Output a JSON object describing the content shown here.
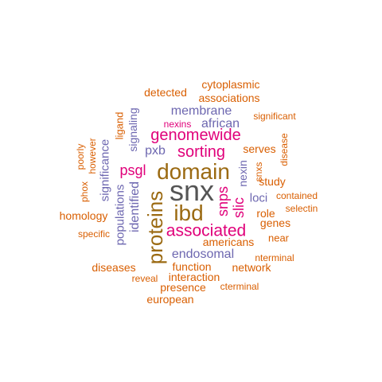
{
  "colors": {
    "gray": "#555555",
    "brown": "#9b6a12",
    "magenta": "#e0007a",
    "purple": "#6d67b0",
    "orange": "#d95f02"
  },
  "words": [
    {
      "text": "snx",
      "color": "gray"
    },
    {
      "text": "domain",
      "color": "brown"
    },
    {
      "text": "ibd",
      "color": "brown"
    },
    {
      "text": "proteins",
      "color": "brown"
    },
    {
      "text": "associated",
      "color": "magenta"
    },
    {
      "text": "genomewide",
      "color": "magenta"
    },
    {
      "text": "sorting",
      "color": "magenta"
    },
    {
      "text": "snps",
      "color": "magenta"
    },
    {
      "text": "slic",
      "color": "magenta"
    },
    {
      "text": "psgl",
      "color": "magenta"
    },
    {
      "text": "membrane",
      "color": "purple"
    },
    {
      "text": "african",
      "color": "purple"
    },
    {
      "text": "pxb",
      "color": "purple"
    },
    {
      "text": "endosomal",
      "color": "purple"
    },
    {
      "text": "identified",
      "color": "purple"
    },
    {
      "text": "populations",
      "color": "purple"
    },
    {
      "text": "significance",
      "color": "purple"
    },
    {
      "text": "signaling",
      "color": "purple"
    },
    {
      "text": "nexin",
      "color": "purple"
    },
    {
      "text": "loci",
      "color": "purple"
    },
    {
      "text": "cytoplasmic",
      "color": "orange"
    },
    {
      "text": "associations",
      "color": "orange"
    },
    {
      "text": "detected",
      "color": "orange"
    },
    {
      "text": "nexins",
      "color": "magenta"
    },
    {
      "text": "significant",
      "color": "orange"
    },
    {
      "text": "ligand",
      "color": "orange"
    },
    {
      "text": "poorly",
      "color": "orange"
    },
    {
      "text": "however",
      "color": "orange"
    },
    {
      "text": "phox",
      "color": "orange"
    },
    {
      "text": "serves",
      "color": "orange"
    },
    {
      "text": "disease",
      "color": "orange"
    },
    {
      "text": "snxs",
      "color": "orange"
    },
    {
      "text": "study",
      "color": "orange"
    },
    {
      "text": "contained",
      "color": "orange"
    },
    {
      "text": "selectin",
      "color": "orange"
    },
    {
      "text": "role",
      "color": "orange"
    },
    {
      "text": "genes",
      "color": "orange"
    },
    {
      "text": "homology",
      "color": "orange"
    },
    {
      "text": "specific",
      "color": "orange"
    },
    {
      "text": "americans",
      "color": "orange"
    },
    {
      "text": "near",
      "color": "orange"
    },
    {
      "text": "nterminal",
      "color": "orange"
    },
    {
      "text": "function",
      "color": "orange"
    },
    {
      "text": "network",
      "color": "orange"
    },
    {
      "text": "diseases",
      "color": "orange"
    },
    {
      "text": "reveal",
      "color": "orange"
    },
    {
      "text": "interaction",
      "color": "orange"
    },
    {
      "text": "presence",
      "color": "orange"
    },
    {
      "text": "cterminal",
      "color": "orange"
    },
    {
      "text": "european",
      "color": "orange"
    }
  ]
}
